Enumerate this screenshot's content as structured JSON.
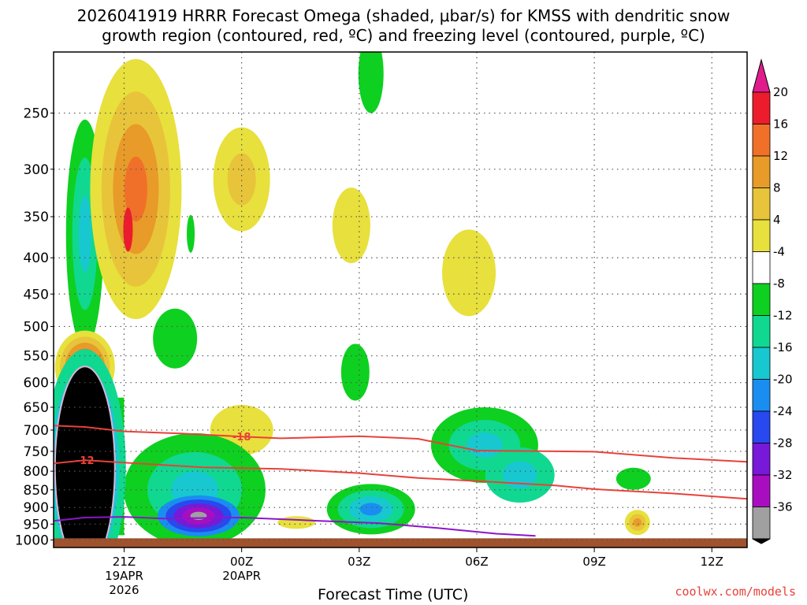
{
  "title": {
    "line1": "2026041919 HRRR Forecast Omega (shaded, μbar/s) for KMSS with dendritic snow",
    "line2": "growth region (contoured, red, ºC) and freezing level (contoured, purple, ºC)"
  },
  "credit": "coolwx.com/models",
  "chart_data": {
    "type": "heatmap",
    "xlabel": "Forecast Time (UTC)",
    "ylabel": "",
    "x_range_hours_utc": [
      19.2,
      36.9
    ],
    "y_axis": {
      "scale": "log-pressure",
      "ticks": [
        250,
        300,
        350,
        400,
        450,
        500,
        550,
        600,
        650,
        700,
        750,
        800,
        850,
        900,
        950,
        1000
      ],
      "range": [
        205,
        1025
      ],
      "inverted": true
    },
    "x_ticks": [
      {
        "hour": 21,
        "label": "21Z",
        "date": "19APR",
        "year": "2026"
      },
      {
        "hour": 24,
        "label": "00Z",
        "date": "20APR",
        "year": ""
      },
      {
        "hour": 27,
        "label": "03Z",
        "date": "",
        "year": ""
      },
      {
        "hour": 30,
        "label": "06Z",
        "date": "",
        "year": ""
      },
      {
        "hour": 33,
        "label": "09Z",
        "date": "",
        "year": ""
      },
      {
        "hour": 36,
        "label": "12Z",
        "date": "",
        "year": ""
      }
    ],
    "grid": true,
    "colorbar": {
      "unit": "μbar/s",
      "levels": [
        {
          "label": "20",
          "color": "#ec1c2c"
        },
        {
          "label": "16",
          "color": "#f0702a"
        },
        {
          "label": "12",
          "color": "#e89b28"
        },
        {
          "label": "8",
          "color": "#e8c43a"
        },
        {
          "label": "4",
          "color": "#e8e03c"
        },
        {
          "label": "-4",
          "color": "#ffffff"
        },
        {
          "label": "-8",
          "color": "#0ed020"
        },
        {
          "label": "-12",
          "color": "#10d890"
        },
        {
          "label": "-16",
          "color": "#18c8d0"
        },
        {
          "label": "-20",
          "color": "#1a8ef0"
        },
        {
          "label": "-24",
          "color": "#2848f0"
        },
        {
          "label": "-28",
          "color": "#7818d8"
        },
        {
          "label": "-32",
          "color": "#a80ec0"
        },
        {
          "label": "-36",
          "color": "#a0a0a0"
        }
      ],
      "top_arrow_color": "#e01c8c",
      "bottom_arrow_color": "#000000"
    },
    "omega_features": [
      {
        "type": "lift",
        "hour": 20.0,
        "p": 790,
        "value": -40,
        "note": "strongest upward motion core"
      },
      {
        "type": "lift",
        "hour": 22.9,
        "p": 925,
        "value": -30
      },
      {
        "type": "lift",
        "hour": 20.0,
        "p": 370,
        "value": -16
      },
      {
        "type": "sink",
        "hour": 20.0,
        "p": 570,
        "value": 18
      },
      {
        "type": "sink",
        "hour": 21.1,
        "p": 330,
        "value": 14
      },
      {
        "type": "sink",
        "hour": 24.0,
        "p": 310,
        "value": 8
      },
      {
        "type": "lift",
        "hour": 27.1,
        "p": 905,
        "value": -18
      },
      {
        "type": "lift",
        "hour": 29.9,
        "p": 720,
        "value": -14
      },
      {
        "type": "lift",
        "hour": 31.0,
        "p": 820,
        "value": -14
      },
      {
        "type": "sink",
        "hour": 34.1,
        "p": 940,
        "value": 8
      },
      {
        "type": "lift",
        "hour": 34.0,
        "p": 820,
        "value": -7
      }
    ],
    "series": [
      {
        "name": "-18",
        "color": "#e8413a",
        "points": [
          [
            19.2,
            690
          ],
          [
            20.0,
            693
          ],
          [
            21.0,
            703
          ],
          [
            22.5,
            708
          ],
          [
            24.0,
            715
          ],
          [
            25.0,
            719
          ],
          [
            27.0,
            714
          ],
          [
            28.5,
            720
          ],
          [
            30.0,
            748
          ],
          [
            32.0,
            750
          ],
          [
            33.0,
            751
          ],
          [
            35.0,
            766
          ],
          [
            36.9,
            776
          ]
        ]
      },
      {
        "name": "-12",
        "color": "#e8413a",
        "points": [
          [
            19.2,
            780
          ],
          [
            20.0,
            772
          ],
          [
            21.0,
            778
          ],
          [
            23.0,
            790
          ],
          [
            25.0,
            794
          ],
          [
            27.0,
            805
          ],
          [
            28.5,
            818
          ],
          [
            30.0,
            826
          ],
          [
            32.0,
            838
          ],
          [
            33.0,
            848
          ],
          [
            35.0,
            860
          ],
          [
            36.9,
            875
          ]
        ]
      },
      {
        "name": "0",
        "color": "#8c16c8",
        "points": [
          [
            19.2,
            940
          ],
          [
            20.0,
            930
          ],
          [
            21.0,
            928
          ],
          [
            22.0,
            933
          ],
          [
            24.0,
            930
          ],
          [
            26.0,
            940
          ],
          [
            27.5,
            947
          ],
          [
            29.0,
            962
          ],
          [
            30.5,
            980
          ],
          [
            31.5,
            987
          ]
        ]
      }
    ],
    "terrain_color": "#a0522d"
  }
}
